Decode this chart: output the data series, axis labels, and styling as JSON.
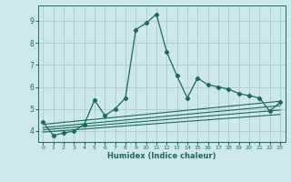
{
  "xlabel": "Humidex (Indice chaleur)",
  "bg_color": "#cce8e8",
  "grid_color": "#aacccc",
  "line_color": "#1a6b5a",
  "xlim": [
    -0.5,
    23.5
  ],
  "ylim": [
    3.5,
    9.7
  ],
  "yticks": [
    4,
    5,
    6,
    7,
    8,
    9
  ],
  "xticks": [
    0,
    1,
    2,
    3,
    4,
    5,
    6,
    7,
    8,
    9,
    10,
    11,
    12,
    13,
    14,
    15,
    16,
    17,
    18,
    19,
    20,
    21,
    22,
    23
  ],
  "main_x": [
    0,
    1,
    2,
    3,
    4,
    5,
    6,
    7,
    8,
    9,
    10,
    11,
    12,
    13,
    14,
    15,
    16,
    17,
    18,
    19,
    20,
    21,
    22,
    23
  ],
  "main_y": [
    4.4,
    3.8,
    3.9,
    4.0,
    4.3,
    5.4,
    4.7,
    5.0,
    5.5,
    8.6,
    8.9,
    9.3,
    7.6,
    6.5,
    5.5,
    6.4,
    6.1,
    6.0,
    5.9,
    5.7,
    5.6,
    5.5,
    4.9,
    5.3
  ],
  "band_lines": [
    [
      0,
      4.3,
      23,
      5.35
    ],
    [
      0,
      4.15,
      23,
      5.15
    ],
    [
      0,
      4.05,
      23,
      4.95
    ],
    [
      0,
      3.95,
      23,
      4.75
    ]
  ]
}
